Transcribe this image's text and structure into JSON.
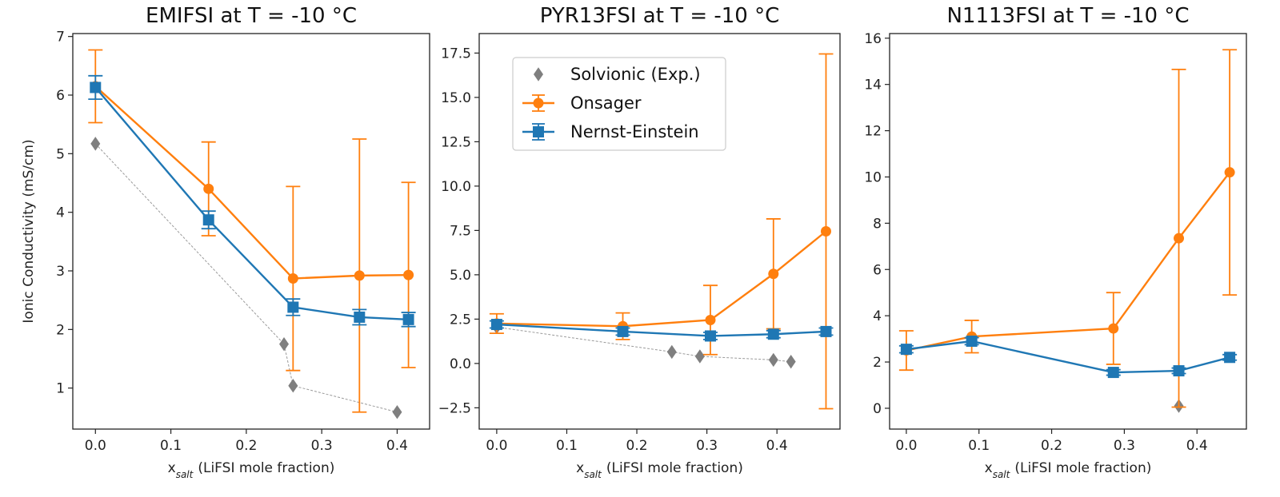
{
  "colors": {
    "onsager": "#ff7f0e",
    "nernst": "#1f77b4",
    "exp": "#7f7f7f"
  },
  "chart_data": [
    {
      "type": "line",
      "title": "EMIFSI at T = -10 °C",
      "xlabel": "(LiFSI mole fraction)",
      "xlabel_main": "x",
      "xlabel_sub": "salt",
      "ylabel": "Ionic Conductivity (mS/cm)",
      "xlim": [
        -0.03,
        0.443
      ],
      "ylim": [
        0.3,
        7.05
      ],
      "xticks": [
        0.0,
        0.1,
        0.2,
        0.3,
        0.4
      ],
      "yticks": [
        1,
        2,
        3,
        4,
        5,
        6,
        7
      ],
      "ytick_labels": [
        "1",
        "2",
        "3",
        "4",
        "5",
        "6",
        "7"
      ],
      "series": [
        {
          "name": "Solvionic (Exp.)",
          "kind": "exp",
          "x": [
            0.0,
            0.25,
            0.262,
            0.4
          ],
          "y": [
            5.17,
            1.75,
            1.04,
            0.59
          ]
        },
        {
          "name": "Onsager",
          "kind": "onsager",
          "x": [
            0.0,
            0.15,
            0.262,
            0.35,
            0.415
          ],
          "y": [
            6.15,
            4.4,
            2.87,
            2.92,
            2.93
          ],
          "err": [
            0.62,
            0.8,
            1.57,
            2.33,
            1.58
          ]
        },
        {
          "name": "Nernst-Einstein",
          "kind": "nernst",
          "x": [
            0.0,
            0.15,
            0.262,
            0.35,
            0.415
          ],
          "y": [
            6.13,
            3.87,
            2.38,
            2.21,
            2.17
          ],
          "err": [
            0.2,
            0.15,
            0.14,
            0.13,
            0.12
          ]
        }
      ]
    },
    {
      "type": "line",
      "title": "PYR13FSI at T = -10 °C",
      "xlabel": "(LiFSI mole fraction)",
      "xlabel_main": "x",
      "xlabel_sub": "salt",
      "ylabel": "",
      "xlim": [
        -0.025,
        0.49
      ],
      "ylim": [
        -3.7,
        18.6
      ],
      "xticks": [
        0.0,
        0.1,
        0.2,
        0.3,
        0.4
      ],
      "yticks": [
        -2.5,
        0.0,
        2.5,
        5.0,
        7.5,
        10.0,
        12.5,
        15.0,
        17.5
      ],
      "ytick_labels": [
        "−2.5",
        "0.0",
        "2.5",
        "5.0",
        "7.5",
        "10.0",
        "12.5",
        "15.0",
        "17.5"
      ],
      "legend": {
        "position": "upper-left",
        "entries": [
          "Solvionic (Exp.)",
          "Onsager",
          "Nernst-Einstein"
        ]
      },
      "series": [
        {
          "name": "Solvionic (Exp.)",
          "kind": "exp",
          "x": [
            0.0,
            0.25,
            0.29,
            0.395,
            0.42
          ],
          "y": [
            2.05,
            0.65,
            0.4,
            0.2,
            0.1
          ]
        },
        {
          "name": "Onsager",
          "kind": "onsager",
          "x": [
            0.0,
            0.18,
            0.305,
            0.395,
            0.47
          ],
          "y": [
            2.25,
            2.1,
            2.45,
            5.05,
            7.45
          ],
          "err": [
            0.55,
            0.75,
            1.95,
            3.1,
            10.0
          ]
        },
        {
          "name": "Nernst-Einstein",
          "kind": "nernst",
          "x": [
            0.0,
            0.18,
            0.305,
            0.395,
            0.47
          ],
          "y": [
            2.2,
            1.8,
            1.55,
            1.65,
            1.8
          ],
          "err": [
            0.2,
            0.2,
            0.2,
            0.2,
            0.2
          ]
        }
      ]
    },
    {
      "type": "line",
      "title": "N1113FSI at T = -10 °C",
      "xlabel": "(LiFSI mole fraction)",
      "xlabel_main": "x",
      "xlabel_sub": "salt",
      "ylabel": "",
      "xlim": [
        -0.023,
        0.468
      ],
      "ylim": [
        -0.9,
        16.2
      ],
      "xticks": [
        0.0,
        0.1,
        0.2,
        0.3,
        0.4
      ],
      "yticks": [
        0,
        2,
        4,
        6,
        8,
        10,
        12,
        14,
        16
      ],
      "ytick_labels": [
        "0",
        "2",
        "4",
        "6",
        "8",
        "10",
        "12",
        "14",
        "16"
      ],
      "series": [
        {
          "name": "Solvionic (Exp.)",
          "kind": "exp",
          "x": [
            0.375
          ],
          "y": [
            0.1
          ]
        },
        {
          "name": "Onsager",
          "kind": "onsager",
          "x": [
            0.0,
            0.09,
            0.285,
            0.375,
            0.445
          ],
          "y": [
            2.5,
            3.1,
            3.45,
            7.35,
            10.2
          ],
          "err": [
            0.85,
            0.7,
            1.55,
            7.3,
            5.3
          ]
        },
        {
          "name": "Nernst-Einstein",
          "kind": "nernst",
          "x": [
            0.0,
            0.09,
            0.285,
            0.375,
            0.445
          ],
          "y": [
            2.55,
            2.9,
            1.55,
            1.62,
            2.2
          ],
          "err": [
            0.15,
            0.15,
            0.12,
            0.12,
            0.12
          ]
        }
      ]
    }
  ]
}
